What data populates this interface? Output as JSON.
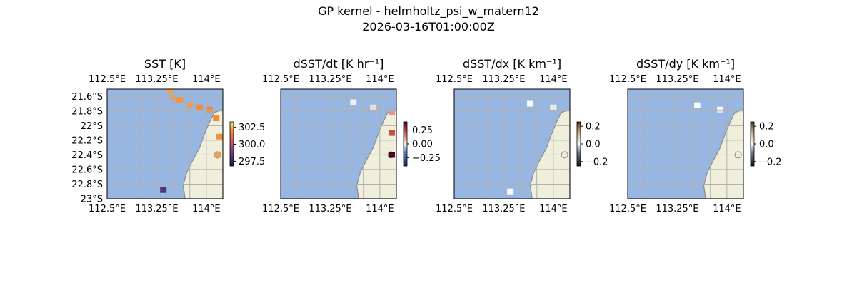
{
  "figure": {
    "title": "GP kernel - helmholtz_psi_w_matern12",
    "subtitle": "2026-03-16T01:00:00Z"
  },
  "colors": {
    "ocean": "#97b6e1",
    "land": "#efefdb",
    "coast": "#8c8c8c",
    "grid": "#b0b0b0",
    "sst_warm": "#f28a3c",
    "sst_cool": "#8e5a98"
  },
  "chart_data": [
    {
      "type": "heatmap",
      "title": "SST [K]",
      "x_ticks": [
        "112.5°E",
        "113.25°E",
        "114°E"
      ],
      "y_ticks": [
        "21.6°S",
        "21.8°S",
        "22°S",
        "22.2°S",
        "22.4°S",
        "22.6°S",
        "22.8°S",
        "23°S"
      ],
      "xlim": [
        112.5,
        114.25
      ],
      "ylim": [
        -23.0,
        -21.5
      ],
      "colorbar": {
        "ticks": [
          "302.5",
          "300.0",
          "297.5"
        ],
        "range": [
          296.8,
          303.3
        ],
        "colormap": "thermal"
      },
      "cells": [
        {
          "lon": 113.45,
          "lat": -21.52,
          "value": 302.3
        },
        {
          "lon": 113.5,
          "lat": -21.62,
          "value": 302.2
        },
        {
          "lon": 113.6,
          "lat": -21.65,
          "value": 302.1
        },
        {
          "lon": 113.75,
          "lat": -21.72,
          "value": 302.2
        },
        {
          "lon": 113.9,
          "lat": -21.75,
          "value": 302.0
        },
        {
          "lon": 114.05,
          "lat": -21.78,
          "value": 301.9
        },
        {
          "lon": 114.15,
          "lat": -21.9,
          "value": 302.0
        },
        {
          "lon": 114.2,
          "lat": -22.15,
          "value": 302.1
        },
        {
          "lon": 114.18,
          "lat": -22.4,
          "value": 302.3
        },
        {
          "lon": 113.35,
          "lat": -22.88,
          "value": 298.2
        }
      ]
    },
    {
      "type": "heatmap",
      "title": "dSST/dt [K hr⁻¹]",
      "x_ticks": [
        "112.5°E",
        "113.25°E",
        "114°E"
      ],
      "xlim": [
        112.5,
        114.25
      ],
      "ylim": [
        -23.0,
        -21.5
      ],
      "colorbar": {
        "ticks": [
          "0.25",
          "0.00",
          "−0.25"
        ],
        "range": [
          -0.4,
          0.4
        ],
        "colormap": "balance"
      },
      "cells": [
        {
          "lon": 113.6,
          "lat": -21.68,
          "value": 0.0
        },
        {
          "lon": 113.9,
          "lat": -21.75,
          "value": 0.03
        },
        {
          "lon": 114.18,
          "lat": -21.82,
          "value": 0.12
        },
        {
          "lon": 114.18,
          "lat": -22.1,
          "value": 0.22
        },
        {
          "lon": 114.18,
          "lat": -22.4,
          "value": 0.4
        }
      ]
    },
    {
      "type": "heatmap",
      "title": "dSST/dx [K km⁻¹]",
      "x_ticks": [
        "112.5°E",
        "113.25°E",
        "114°E"
      ],
      "xlim": [
        112.5,
        114.25
      ],
      "ylim": [
        -23.0,
        -21.5
      ],
      "colorbar": {
        "ticks": [
          "0.2",
          "0.0",
          "−0.2"
        ],
        "range": [
          -0.25,
          0.25
        ],
        "colormap": "diverging-gray"
      },
      "cells": [
        {
          "lon": 113.65,
          "lat": -21.7,
          "value": 0.0
        },
        {
          "lon": 114.0,
          "lat": -21.75,
          "value": 0.02
        },
        {
          "lon": 113.35,
          "lat": -22.9,
          "value": 0.0
        }
      ]
    },
    {
      "type": "heatmap",
      "title": "dSST/dy [K km⁻¹]",
      "x_ticks": [
        "112.5°E",
        "113.25°E",
        "114°E"
      ],
      "xlim": [
        112.5,
        114.25
      ],
      "ylim": [
        -23.0,
        -21.5
      ],
      "colorbar": {
        "ticks": [
          "0.2",
          "0.0",
          "−0.2"
        ],
        "range": [
          -0.25,
          0.25
        ],
        "colormap": "diverging-gray"
      },
      "cells": [
        {
          "lon": 113.55,
          "lat": -21.72,
          "value": 0.0
        },
        {
          "lon": 113.9,
          "lat": -21.78,
          "value": 0.01
        }
      ]
    }
  ]
}
